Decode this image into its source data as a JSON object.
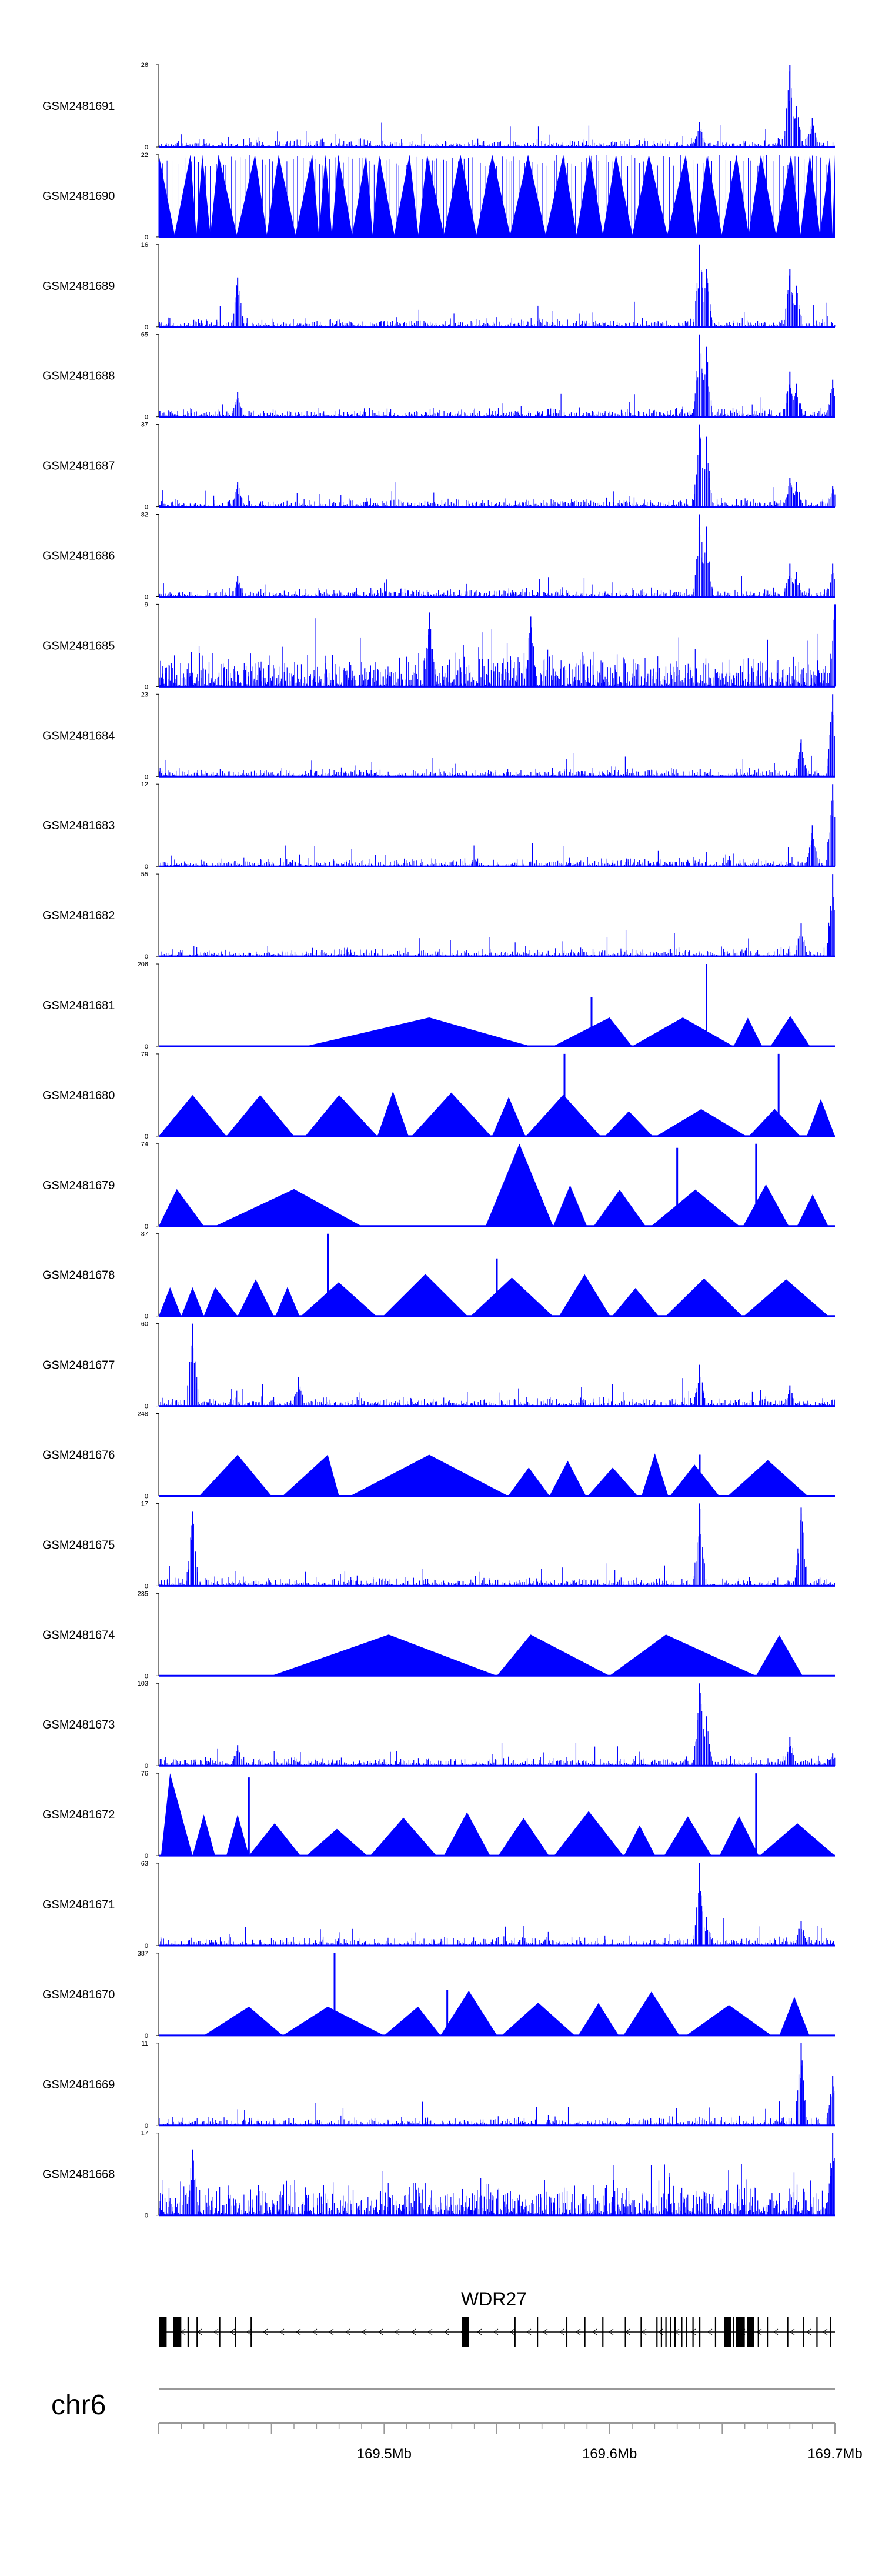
{
  "chart_data": {
    "type": "genome-browser-tracks",
    "region": {
      "chromosome": "chr6",
      "start_mb": 169.4,
      "end_mb": 169.7
    },
    "tracks": [
      {
        "label": "GSM2481691",
        "ymax": "26",
        "ymin": "0",
        "style": "spiky",
        "peaks": [
          [
            169.68,
            1.0
          ],
          [
            169.683,
            0.5
          ],
          [
            169.69,
            0.35
          ],
          [
            169.64,
            0.3
          ]
        ]
      },
      {
        "label": "GSM2481690",
        "ymax": "22",
        "ymin": "0",
        "style": "triangles",
        "peaks": []
      },
      {
        "label": "GSM2481689",
        "ymax": "16",
        "ymin": "0",
        "style": "spiky",
        "peaks": [
          [
            169.435,
            0.6
          ],
          [
            169.64,
            1.0
          ],
          [
            169.643,
            0.7
          ],
          [
            169.68,
            0.7
          ],
          [
            169.683,
            0.5
          ]
        ]
      },
      {
        "label": "GSM2481688",
        "ymax": "65",
        "ymin": "0",
        "style": "spiky",
        "peaks": [
          [
            169.435,
            0.3
          ],
          [
            169.64,
            1.0
          ],
          [
            169.643,
            0.85
          ],
          [
            169.68,
            0.55
          ],
          [
            169.683,
            0.4
          ],
          [
            169.699,
            0.45
          ]
        ]
      },
      {
        "label": "GSM2481687",
        "ymax": "37",
        "ymin": "0",
        "style": "spiky",
        "peaks": [
          [
            169.435,
            0.3
          ],
          [
            169.64,
            1.0
          ],
          [
            169.643,
            0.85
          ],
          [
            169.68,
            0.35
          ],
          [
            169.683,
            0.3
          ],
          [
            169.699,
            0.25
          ]
        ]
      },
      {
        "label": "GSM2481686",
        "ymax": "82",
        "ymin": "0",
        "style": "spiky",
        "peaks": [
          [
            169.435,
            0.25
          ],
          [
            169.64,
            1.0
          ],
          [
            169.643,
            0.85
          ],
          [
            169.68,
            0.4
          ],
          [
            169.683,
            0.3
          ],
          [
            169.699,
            0.4
          ]
        ]
      },
      {
        "label": "GSM2481685",
        "ymax": "9",
        "ymin": "0",
        "style": "dense",
        "peaks": [
          [
            169.52,
            0.9
          ],
          [
            169.565,
            0.85
          ],
          [
            169.7,
            1.0
          ]
        ]
      },
      {
        "label": "GSM2481684",
        "ymax": "23",
        "ymin": "0",
        "style": "spiky",
        "peaks": [
          [
            169.685,
            0.45
          ],
          [
            169.699,
            1.0
          ]
        ]
      },
      {
        "label": "GSM2481683",
        "ymax": "12",
        "ymin": "0",
        "style": "spiky",
        "peaks": [
          [
            169.699,
            1.0
          ],
          [
            169.69,
            0.5
          ]
        ]
      },
      {
        "label": "GSM2481682",
        "ymax": "55",
        "ymin": "0",
        "style": "spiky",
        "peaks": [
          [
            169.685,
            0.4
          ],
          [
            169.699,
            1.0
          ]
        ]
      },
      {
        "label": "GSM2481681",
        "ymax": "206",
        "ymin": "0",
        "style": "sparse",
        "triangles": [
          [
            169.465,
            169.52,
            169.565,
            0.35
          ],
          [
            169.575,
            169.6,
            169.61,
            0.35
          ],
          [
            169.61,
            169.6325,
            169.655,
            0.35
          ]
        ],
        "peaks": [
          [
            169.592,
            0.6
          ],
          [
            169.643,
            1.0
          ]
        ]
      },
      {
        "label": "GSM2481680",
        "ymax": "79",
        "ymin": "0",
        "style": "sparse",
        "triangles": [
          [
            169.4,
            169.415,
            169.43,
            0.5
          ],
          [
            169.43,
            169.445,
            169.46,
            0.5
          ],
          [
            169.465,
            169.48,
            169.497,
            0.5
          ]
        ],
        "peaks": [
          [
            169.58,
            1.0
          ],
          [
            169.675,
            1.0
          ]
        ]
      },
      {
        "label": "GSM2481679",
        "ymax": "74",
        "ymin": "0",
        "style": "sparse",
        "triangles": [
          [
            169.4,
            169.408,
            169.42,
            0.45
          ],
          [
            169.425,
            169.46,
            169.49,
            0.45
          ],
          [
            169.545,
            169.56,
            169.575,
            1.0
          ]
        ],
        "peaks": [
          [
            169.63,
            0.95
          ],
          [
            169.665,
            1.0
          ]
        ]
      },
      {
        "label": "GSM2481678",
        "ymax": "87",
        "ymin": "0",
        "style": "sparse",
        "triangles": [
          [
            169.4,
            169.405,
            169.41,
            0.35
          ],
          [
            169.41,
            169.415,
            169.42,
            0.35
          ],
          [
            169.42,
            169.425,
            169.435,
            0.35
          ]
        ],
        "peaks": [
          [
            169.475,
            1.0
          ],
          [
            169.55,
            0.7
          ]
        ]
      },
      {
        "label": "GSM2481677",
        "ymax": "60",
        "ymin": "0",
        "style": "spiky",
        "peaks": [
          [
            169.415,
            1.0
          ],
          [
            169.462,
            0.35
          ],
          [
            169.64,
            0.5
          ],
          [
            169.68,
            0.25
          ]
        ]
      },
      {
        "label": "GSM2481676",
        "ymax": "248",
        "ymin": "0",
        "style": "sparse",
        "triangles": [
          [
            169.418,
            169.435,
            169.45,
            0.5
          ],
          [
            169.455,
            169.475,
            169.48,
            0.5
          ],
          [
            169.485,
            169.52,
            169.555,
            0.5
          ]
        ],
        "peaks": [
          [
            169.64,
            0.5
          ]
        ]
      },
      {
        "label": "GSM2481675",
        "ymax": "17",
        "ymin": "0",
        "style": "spiky",
        "peaks": [
          [
            169.415,
            0.9
          ],
          [
            169.64,
            1.0
          ],
          [
            169.685,
            0.95
          ]
        ]
      },
      {
        "label": "GSM2481674",
        "ymax": "235",
        "ymin": "0",
        "style": "sparse",
        "triangles": [
          [
            169.45,
            169.502,
            169.55,
            0.5
          ],
          [
            169.55,
            169.565,
            169.6,
            0.5
          ],
          [
            169.6,
            169.625,
            169.665,
            0.5
          ]
        ],
        "peaks": []
      },
      {
        "label": "GSM2481673",
        "ymax": "103",
        "ymin": "0",
        "style": "spiky",
        "peaks": [
          [
            169.435,
            0.25
          ],
          [
            169.64,
            1.0
          ],
          [
            169.643,
            0.6
          ],
          [
            169.68,
            0.35
          ],
          [
            169.699,
            0.15
          ]
        ]
      },
      {
        "label": "GSM2481672",
        "ymax": "76",
        "ymin": "0",
        "style": "sparse",
        "triangles": [
          [
            169.401,
            169.405,
            169.415,
            1.0
          ],
          [
            169.415,
            169.42,
            169.425,
            0.5
          ],
          [
            169.43,
            169.435,
            169.44,
            0.5
          ]
        ],
        "peaks": [
          [
            169.44,
            0.95
          ],
          [
            169.665,
            1.0
          ]
        ]
      },
      {
        "label": "GSM2481671",
        "ymax": "63",
        "ymin": "0",
        "style": "spiky",
        "peaks": [
          [
            169.64,
            1.0
          ],
          [
            169.643,
            0.35
          ],
          [
            169.685,
            0.3
          ]
        ]
      },
      {
        "label": "GSM2481670",
        "ymax": "387",
        "ymin": "0",
        "style": "sparse",
        "triangles": [
          [
            169.42,
            169.44,
            169.455,
            0.35
          ],
          [
            169.455,
            169.475,
            169.5,
            0.35
          ],
          [
            169.5,
            169.515,
            169.525,
            0.35
          ]
        ],
        "peaks": [
          [
            169.478,
            1.0
          ],
          [
            169.528,
            0.55
          ]
        ]
      },
      {
        "label": "GSM2481669",
        "ymax": "11",
        "ymin": "0",
        "style": "spiky",
        "peaks": [
          [
            169.685,
            1.0
          ],
          [
            169.699,
            0.6
          ]
        ]
      },
      {
        "label": "GSM2481668",
        "ymax": "17",
        "ymin": "0",
        "style": "dense",
        "peaks": [
          [
            169.699,
            1.0
          ],
          [
            169.415,
            0.8
          ]
        ]
      }
    ],
    "gene": {
      "name": "WDR27",
      "strand": "-"
    },
    "xaxis": {
      "ticks": [
        169.4,
        169.45,
        169.5,
        169.55,
        169.6,
        169.65,
        169.7
      ],
      "tick_labels": [
        "169.5Mb",
        "169.6Mb",
        "169.7Mb"
      ],
      "labeled_ticks": [
        169.5,
        169.6,
        169.7
      ]
    }
  },
  "colors": {
    "signal": "#0000ff",
    "axis": "#000000",
    "gene": "#000000"
  }
}
